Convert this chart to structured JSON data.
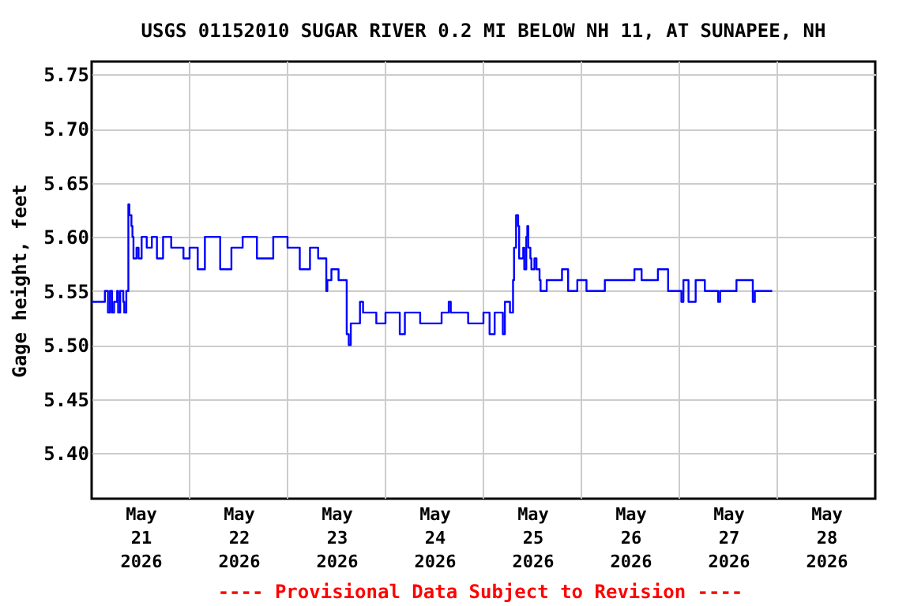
{
  "chart_data": {
    "type": "step",
    "title": "USGS 01152010 SUGAR RIVER 0.2 MI BELOW NH 11, AT SUNAPEE, NH",
    "ylabel": "Gage height, feet",
    "annotations": [
      "---- Provisional Data Subject to Revision ----"
    ],
    "x": [
      "2026-05-21T00:00",
      "2026-05-21T03:15",
      "2026-05-21T04:00",
      "2026-05-21T04:30",
      "2026-05-21T05:00",
      "2026-05-21T05:30",
      "2026-05-21T06:15",
      "2026-05-21T06:30",
      "2026-05-21T07:00",
      "2026-05-21T07:45",
      "2026-05-21T08:00",
      "2026-05-21T08:30",
      "2026-05-21T09:00",
      "2026-05-21T09:15",
      "2026-05-21T09:45",
      "2026-05-21T10:00",
      "2026-05-21T10:15",
      "2026-05-21T11:00",
      "2026-05-21T11:30",
      "2026-05-21T12:15",
      "2026-05-21T13:30",
      "2026-05-21T14:45",
      "2026-05-21T16:00",
      "2026-05-21T17:30",
      "2026-05-21T19:30",
      "2026-05-21T22:30",
      "2026-05-22T00:00",
      "2026-05-22T02:00",
      "2026-05-22T03:45",
      "2026-05-22T07:30",
      "2026-05-22T10:15",
      "2026-05-22T13:00",
      "2026-05-22T16:30",
      "2026-05-22T20:30",
      "2026-05-23T00:00",
      "2026-05-23T03:00",
      "2026-05-23T05:30",
      "2026-05-23T07:30",
      "2026-05-23T09:30",
      "2026-05-23T09:45",
      "2026-05-23T10:45",
      "2026-05-23T12:30",
      "2026-05-23T14:30",
      "2026-05-23T15:00",
      "2026-05-23T15:30",
      "2026-05-23T17:45",
      "2026-05-23T18:30",
      "2026-05-23T21:45",
      "2026-05-24T00:00",
      "2026-05-24T03:30",
      "2026-05-24T04:45",
      "2026-05-24T08:30",
      "2026-05-24T13:45",
      "2026-05-24T15:30",
      "2026-05-24T16:00",
      "2026-05-24T20:15",
      "2026-05-25T00:00",
      "2026-05-25T01:30",
      "2026-05-25T02:45",
      "2026-05-25T04:45",
      "2026-05-25T05:15",
      "2026-05-25T06:30",
      "2026-05-25T07:15",
      "2026-05-25T07:30",
      "2026-05-25T08:00",
      "2026-05-25T08:30",
      "2026-05-25T08:45",
      "2026-05-25T09:45",
      "2026-05-25T10:00",
      "2026-05-25T10:30",
      "2026-05-25T10:45",
      "2026-05-25T11:00",
      "2026-05-25T11:30",
      "2026-05-25T11:45",
      "2026-05-25T12:30",
      "2026-05-25T13:00",
      "2026-05-25T13:45",
      "2026-05-25T14:00",
      "2026-05-25T15:30",
      "2026-05-25T19:15",
      "2026-05-25T20:45",
      "2026-05-25T23:00",
      "2026-05-26T01:15",
      "2026-05-26T05:45",
      "2026-05-26T13:00",
      "2026-05-26T14:45",
      "2026-05-26T18:45",
      "2026-05-26T21:15",
      "2026-05-27T00:30",
      "2026-05-27T01:00",
      "2026-05-27T02:15",
      "2026-05-27T04:00",
      "2026-05-27T06:15",
      "2026-05-27T09:30",
      "2026-05-27T10:00",
      "2026-05-27T14:00",
      "2026-05-27T18:00",
      "2026-05-27T18:30",
      "2026-05-27T22:45"
    ],
    "series": [
      {
        "color": "#0000ff",
        "values": [
          5.54,
          5.55,
          5.53,
          5.55,
          5.53,
          5.54,
          5.55,
          5.53,
          5.55,
          5.54,
          5.53,
          5.55,
          5.63,
          5.62,
          5.61,
          5.6,
          5.58,
          5.59,
          5.58,
          5.6,
          5.59,
          5.6,
          5.58,
          5.6,
          5.59,
          5.58,
          5.59,
          5.57,
          5.6,
          5.57,
          5.59,
          5.6,
          5.58,
          5.6,
          5.59,
          5.57,
          5.59,
          5.58,
          5.55,
          5.56,
          5.57,
          5.56,
          5.51,
          5.5,
          5.52,
          5.54,
          5.53,
          5.52,
          5.53,
          5.51,
          5.53,
          5.52,
          5.53,
          5.54,
          5.53,
          5.52,
          5.53,
          5.51,
          5.53,
          5.51,
          5.54,
          5.53,
          5.56,
          5.59,
          5.62,
          5.61,
          5.58,
          5.59,
          5.57,
          5.6,
          5.61,
          5.59,
          5.58,
          5.57,
          5.58,
          5.57,
          5.56,
          5.55,
          5.56,
          5.57,
          5.55,
          5.56,
          5.55,
          5.56,
          5.57,
          5.56,
          5.57,
          5.55,
          5.54,
          5.56,
          5.54,
          5.56,
          5.55,
          5.54,
          5.55,
          5.56,
          5.54,
          5.55,
          5.55
        ]
      }
    ],
    "xlim": [
      "2026-05-21",
      "2026-05-29"
    ],
    "xticks": [
      {
        "value": "2026-05-21T12:00",
        "label": "May 21 2026"
      },
      {
        "value": "2026-05-22",
        "label": null
      },
      {
        "value": "2026-05-22T12:00",
        "label": "May 22 2026"
      },
      {
        "value": "2026-05-23",
        "label": null
      },
      {
        "value": "2026-05-23T12:00",
        "label": "May 23 2026"
      },
      {
        "value": "2026-05-24",
        "label": null
      },
      {
        "value": "2026-05-24T12:00",
        "label": "May 24 2026"
      },
      {
        "value": "2026-05-25",
        "label": null
      },
      {
        "value": "2026-05-25T12:00",
        "label": "May 25 2026"
      },
      {
        "value": "2026-05-26",
        "label": null
      },
      {
        "value": "2026-05-26T12:00",
        "label": "May 26 2026"
      },
      {
        "value": "2026-05-27",
        "label": null
      },
      {
        "value": "2026-05-27T12:00",
        "label": "May 27 2026"
      },
      {
        "value": "2026-05-28",
        "label": null
      },
      {
        "value": "2026-05-28T12:00",
        "label": "May 28 2026"
      }
    ],
    "ylim": [
      5.358,
      5.762
    ],
    "yticks": [
      {
        "value": 5.4,
        "label": "5.40"
      },
      {
        "value": 5.45,
        "label": "5.45"
      },
      {
        "value": 5.5,
        "label": "5.50"
      },
      {
        "value": 5.55,
        "label": "5.55"
      },
      {
        "value": 5.6,
        "label": "5.60"
      },
      {
        "value": 5.65,
        "label": "5.65"
      },
      {
        "value": 5.7,
        "label": "5.70"
      },
      {
        "value": 5.75,
        "label": "5.75"
      }
    ],
    "grid": true,
    "legend": false
  }
}
